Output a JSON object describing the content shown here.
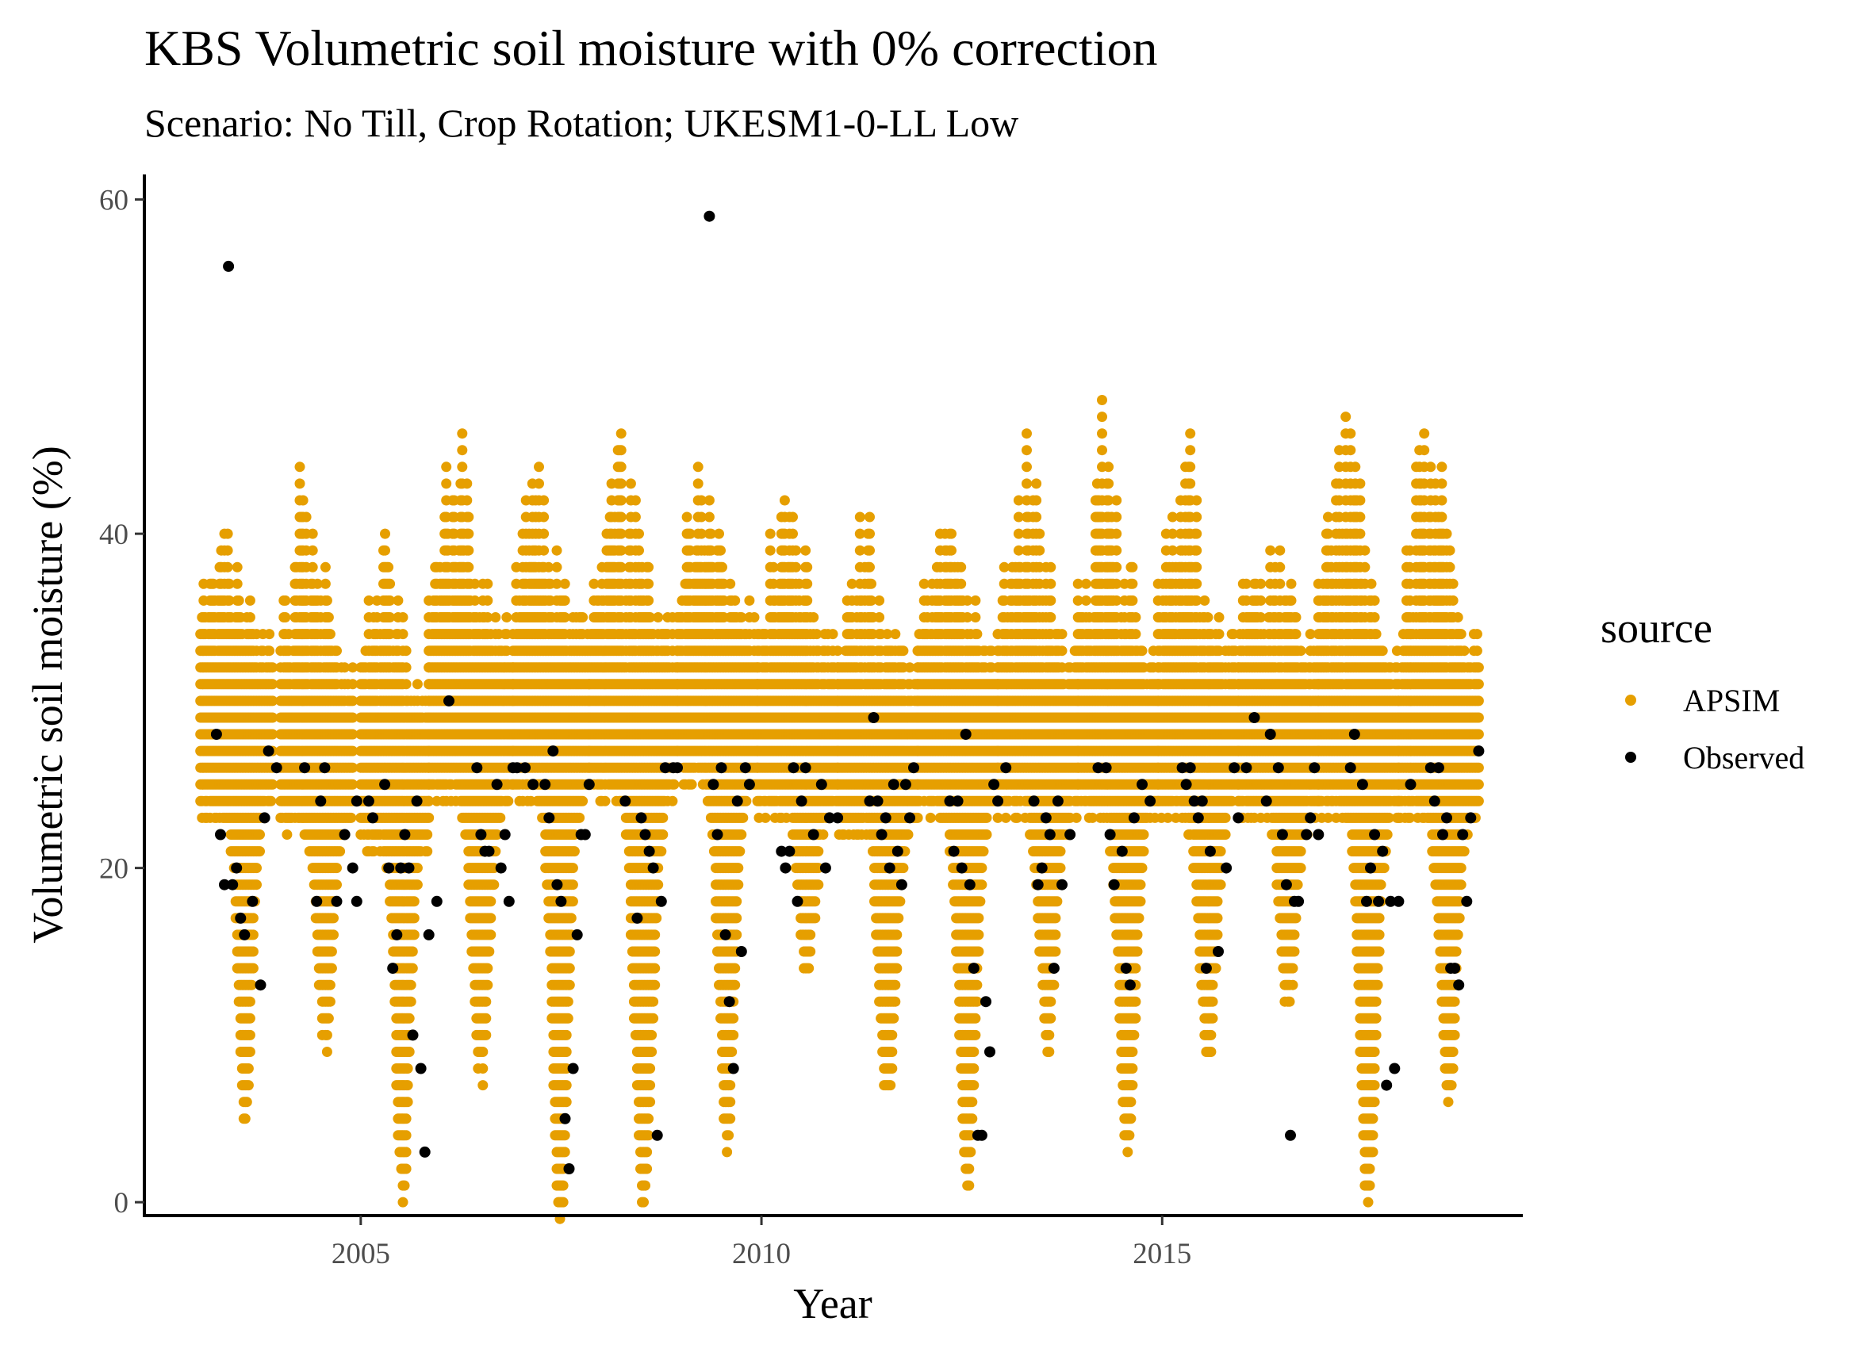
{
  "colors": {
    "apsim": "#E69F00",
    "observed": "#000000",
    "axis": "#000000",
    "tick_text": "#4d4d4d"
  },
  "chart_data": {
    "type": "scatter",
    "title": "KBS Volumetric soil moisture with 0% correction",
    "subtitle": "Scenario: No Till, Crop Rotation; UKESM1-0-LL Low",
    "xlabel": "Year",
    "ylabel": "Volumetric soil moisture (%)",
    "xlim": [
      2002.3,
      2019.5
    ],
    "ylim": [
      -0.8,
      61.5
    ],
    "x_ticks": [
      2005,
      2010,
      2015
    ],
    "x_tick_labels": [
      "2005",
      "2010",
      "2015"
    ],
    "y_ticks": [
      0,
      20,
      40,
      60
    ],
    "y_tick_labels": [
      "0",
      "20",
      "40",
      "60"
    ],
    "grid": false,
    "legend": {
      "title": "source",
      "placement": "right",
      "entries": [
        "APSIM",
        "Observed"
      ]
    },
    "series": [
      {
        "name": "APSIM",
        "seasons": [
          {
            "x_start": 2003.0,
            "x_end": 2003.9,
            "min": 9,
            "max": 41,
            "baseline": 27
          },
          {
            "x_start": 2004.0,
            "x_end": 2004.9,
            "min": 13,
            "max": 43,
            "baseline": 26
          },
          {
            "x_start": 2005.0,
            "x_end": 2005.85,
            "min": 3,
            "max": 37,
            "baseline": 25
          },
          {
            "x_start": 2005.85,
            "x_end": 2006.9,
            "min": 11,
            "max": 42,
            "baseline": 28
          },
          {
            "x_start": 2006.9,
            "x_end": 2007.85,
            "min": 2,
            "max": 40,
            "baseline": 28
          },
          {
            "x_start": 2007.85,
            "x_end": 2008.95,
            "min": 3,
            "max": 44,
            "baseline": 28
          },
          {
            "x_start": 2008.95,
            "x_end": 2009.95,
            "min": 7,
            "max": 40,
            "baseline": 29
          },
          {
            "x_start": 2009.95,
            "x_end": 2010.95,
            "min": 17,
            "max": 39,
            "baseline": 27
          },
          {
            "x_start": 2010.95,
            "x_end": 2011.95,
            "min": 9,
            "max": 37,
            "baseline": 26
          },
          {
            "x_start": 2011.95,
            "x_end": 2012.95,
            "min": 4,
            "max": 37,
            "baseline": 27
          },
          {
            "x_start": 2012.95,
            "x_end": 2013.95,
            "min": 13,
            "max": 44,
            "baseline": 27
          },
          {
            "x_start": 2013.95,
            "x_end": 2014.95,
            "min": 6,
            "max": 44,
            "baseline": 27
          },
          {
            "x_start": 2014.95,
            "x_end": 2015.95,
            "min": 12,
            "max": 43,
            "baseline": 27
          },
          {
            "x_start": 2015.95,
            "x_end": 2016.95,
            "min": 15,
            "max": 38,
            "baseline": 27
          },
          {
            "x_start": 2016.95,
            "x_end": 2017.95,
            "min": 3,
            "max": 44,
            "baseline": 27
          },
          {
            "x_start": 2017.95,
            "x_end": 2018.95,
            "min": 9,
            "max": 44,
            "baseline": 27
          }
        ]
      },
      {
        "name": "Observed",
        "points": [
          [
            2003.2,
            28
          ],
          [
            2003.25,
            22
          ],
          [
            2003.3,
            19
          ],
          [
            2003.35,
            56
          ],
          [
            2003.4,
            19
          ],
          [
            2003.45,
            20
          ],
          [
            2003.5,
            17
          ],
          [
            2003.55,
            16
          ],
          [
            2003.65,
            18
          ],
          [
            2003.75,
            13
          ],
          [
            2003.85,
            27
          ],
          [
            2003.8,
            23
          ],
          [
            2003.95,
            26
          ],
          [
            2004.3,
            26
          ],
          [
            2004.45,
            18
          ],
          [
            2004.5,
            24
          ],
          [
            2004.55,
            26
          ],
          [
            2004.7,
            18
          ],
          [
            2004.8,
            22
          ],
          [
            2004.9,
            20
          ],
          [
            2004.95,
            24
          ],
          [
            2004.95,
            18
          ],
          [
            2005.1,
            24
          ],
          [
            2005.15,
            23
          ],
          [
            2005.3,
            25
          ],
          [
            2005.35,
            20
          ],
          [
            2005.4,
            14
          ],
          [
            2005.45,
            16
          ],
          [
            2005.5,
            20
          ],
          [
            2005.55,
            22
          ],
          [
            2005.6,
            20
          ],
          [
            2005.65,
            10
          ],
          [
            2005.7,
            24
          ],
          [
            2005.75,
            8
          ],
          [
            2005.8,
            3
          ],
          [
            2005.85,
            16
          ],
          [
            2005.95,
            18
          ],
          [
            2006.1,
            30
          ],
          [
            2006.45,
            26
          ],
          [
            2006.5,
            22
          ],
          [
            2006.55,
            21
          ],
          [
            2006.6,
            21
          ],
          [
            2006.7,
            25
          ],
          [
            2006.75,
            20
          ],
          [
            2006.8,
            22
          ],
          [
            2006.85,
            18
          ],
          [
            2006.9,
            26
          ],
          [
            2006.95,
            26
          ],
          [
            2007.05,
            26
          ],
          [
            2007.15,
            25
          ],
          [
            2007.3,
            25
          ],
          [
            2007.35,
            23
          ],
          [
            2007.4,
            27
          ],
          [
            2007.45,
            19
          ],
          [
            2007.5,
            18
          ],
          [
            2007.55,
            5
          ],
          [
            2007.6,
            2
          ],
          [
            2007.65,
            8
          ],
          [
            2007.7,
            16
          ],
          [
            2007.75,
            22
          ],
          [
            2007.8,
            22
          ],
          [
            2007.85,
            25
          ],
          [
            2008.3,
            24
          ],
          [
            2008.45,
            17
          ],
          [
            2008.5,
            23
          ],
          [
            2008.55,
            22
          ],
          [
            2008.6,
            21
          ],
          [
            2008.65,
            20
          ],
          [
            2008.7,
            4
          ],
          [
            2008.75,
            18
          ],
          [
            2008.8,
            26
          ],
          [
            2008.9,
            26
          ],
          [
            2008.95,
            26
          ],
          [
            2009.35,
            59
          ],
          [
            2009.4,
            25
          ],
          [
            2009.45,
            22
          ],
          [
            2009.5,
            26
          ],
          [
            2009.55,
            16
          ],
          [
            2009.6,
            12
          ],
          [
            2009.65,
            8
          ],
          [
            2009.7,
            24
          ],
          [
            2009.75,
            15
          ],
          [
            2009.8,
            26
          ],
          [
            2009.85,
            25
          ],
          [
            2010.25,
            21
          ],
          [
            2010.3,
            20
          ],
          [
            2010.35,
            21
          ],
          [
            2010.4,
            26
          ],
          [
            2010.45,
            18
          ],
          [
            2010.5,
            24
          ],
          [
            2010.55,
            26
          ],
          [
            2010.65,
            22
          ],
          [
            2010.75,
            25
          ],
          [
            2010.8,
            20
          ],
          [
            2010.85,
            23
          ],
          [
            2010.95,
            23
          ],
          [
            2011.35,
            24
          ],
          [
            2011.4,
            29
          ],
          [
            2011.45,
            24
          ],
          [
            2011.5,
            22
          ],
          [
            2011.55,
            23
          ],
          [
            2011.6,
            20
          ],
          [
            2011.65,
            25
          ],
          [
            2011.7,
            21
          ],
          [
            2011.75,
            19
          ],
          [
            2011.8,
            25
          ],
          [
            2011.85,
            23
          ],
          [
            2011.9,
            26
          ],
          [
            2012.35,
            24
          ],
          [
            2012.4,
            21
          ],
          [
            2012.45,
            24
          ],
          [
            2012.5,
            20
          ],
          [
            2012.55,
            28
          ],
          [
            2012.6,
            19
          ],
          [
            2012.65,
            14
          ],
          [
            2012.7,
            4
          ],
          [
            2012.75,
            4
          ],
          [
            2012.8,
            12
          ],
          [
            2012.85,
            9
          ],
          [
            2012.9,
            25
          ],
          [
            2012.95,
            24
          ],
          [
            2013.05,
            26
          ],
          [
            2013.4,
            24
          ],
          [
            2013.45,
            19
          ],
          [
            2013.5,
            20
          ],
          [
            2013.55,
            23
          ],
          [
            2013.6,
            22
          ],
          [
            2013.65,
            14
          ],
          [
            2013.7,
            24
          ],
          [
            2013.75,
            19
          ],
          [
            2013.85,
            22
          ],
          [
            2014.2,
            26
          ],
          [
            2014.3,
            26
          ],
          [
            2014.35,
            22
          ],
          [
            2014.4,
            19
          ],
          [
            2014.5,
            21
          ],
          [
            2014.55,
            14
          ],
          [
            2014.6,
            13
          ],
          [
            2014.65,
            23
          ],
          [
            2014.75,
            25
          ],
          [
            2014.85,
            24
          ],
          [
            2015.25,
            26
          ],
          [
            2015.3,
            25
          ],
          [
            2015.35,
            26
          ],
          [
            2015.4,
            24
          ],
          [
            2015.45,
            23
          ],
          [
            2015.5,
            24
          ],
          [
            2015.55,
            14
          ],
          [
            2015.6,
            21
          ],
          [
            2015.7,
            15
          ],
          [
            2015.8,
            20
          ],
          [
            2015.9,
            26
          ],
          [
            2015.95,
            23
          ],
          [
            2016.05,
            26
          ],
          [
            2016.15,
            29
          ],
          [
            2016.3,
            24
          ],
          [
            2016.35,
            28
          ],
          [
            2016.45,
            26
          ],
          [
            2016.5,
            22
          ],
          [
            2016.55,
            19
          ],
          [
            2016.6,
            4
          ],
          [
            2016.65,
            18
          ],
          [
            2016.7,
            18
          ],
          [
            2016.8,
            22
          ],
          [
            2016.85,
            23
          ],
          [
            2016.9,
            26
          ],
          [
            2016.95,
            22
          ],
          [
            2017.35,
            26
          ],
          [
            2017.4,
            28
          ],
          [
            2017.5,
            25
          ],
          [
            2017.55,
            18
          ],
          [
            2017.6,
            20
          ],
          [
            2017.65,
            22
          ],
          [
            2017.7,
            18
          ],
          [
            2017.75,
            21
          ],
          [
            2017.8,
            7
          ],
          [
            2017.85,
            18
          ],
          [
            2017.9,
            8
          ],
          [
            2017.95,
            18
          ],
          [
            2018.1,
            25
          ],
          [
            2018.35,
            26
          ],
          [
            2018.4,
            24
          ],
          [
            2018.45,
            26
          ],
          [
            2018.5,
            22
          ],
          [
            2018.55,
            23
          ],
          [
            2018.6,
            14
          ],
          [
            2018.65,
            14
          ],
          [
            2018.7,
            13
          ],
          [
            2018.75,
            22
          ],
          [
            2018.8,
            18
          ],
          [
            2018.85,
            23
          ],
          [
            2018.95,
            27
          ]
        ]
      }
    ]
  }
}
